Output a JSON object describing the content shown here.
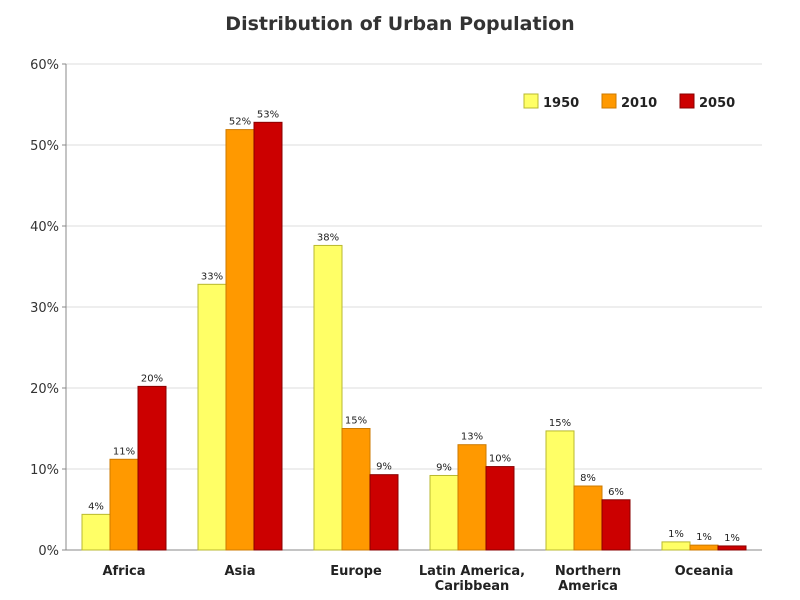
{
  "chart_data": {
    "type": "bar",
    "title": "Distribution of Urban Population",
    "xlabel": "",
    "ylabel": "",
    "ylim": [
      0,
      60
    ],
    "yticks": [
      0,
      10,
      20,
      30,
      40,
      50,
      60
    ],
    "ytick_labels": [
      "0%",
      "10%",
      "20%",
      "30%",
      "40%",
      "50%",
      "60%"
    ],
    "grid": true,
    "legend_position": "top-right",
    "categories": [
      [
        "Africa"
      ],
      [
        "Asia"
      ],
      [
        "Europe"
      ],
      [
        "Latin America,",
        "Caribbean"
      ],
      [
        "Northern",
        "America"
      ],
      [
        "Oceania"
      ]
    ],
    "series": [
      {
        "name": "1950",
        "color": "#ffff66",
        "values": [
          4.4,
          32.8,
          37.6,
          9.2,
          14.7,
          1.0
        ],
        "labels": [
          "4%",
          "33%",
          "38%",
          "9%",
          "15%",
          "1%"
        ]
      },
      {
        "name": "2010",
        "color": "#ff9900",
        "values": [
          11.2,
          51.9,
          15.0,
          13.0,
          7.9,
          0.6
        ],
        "labels": [
          "11%",
          "52%",
          "15%",
          "13%",
          "8%",
          "1%"
        ]
      },
      {
        "name": "2050",
        "color": "#cc0000",
        "values": [
          20.2,
          52.8,
          9.3,
          10.3,
          6.2,
          0.5
        ],
        "labels": [
          "20%",
          "53%",
          "9%",
          "10%",
          "6%",
          "1%"
        ]
      }
    ]
  }
}
